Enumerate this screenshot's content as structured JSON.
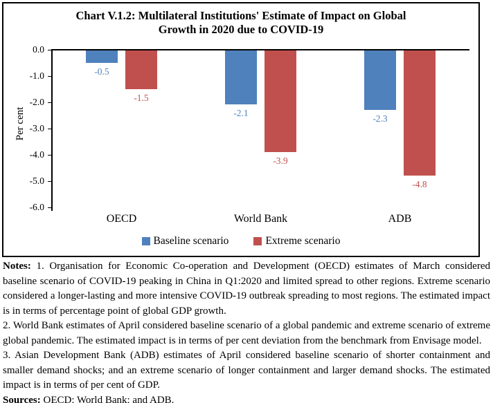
{
  "figure": {
    "title_line1": "Chart V.1.2: Multilateral Institutions' Estimate of Impact on Global",
    "title_line2": "Growth in 2020 due to COVID-19"
  },
  "chart_data": {
    "type": "bar",
    "title": "Chart V.1.2: Multilateral Institutions' Estimate of Impact on Global Growth in 2020 due to COVID-19",
    "categories": [
      "OECD",
      "World Bank",
      "ADB"
    ],
    "series": [
      {
        "name": "Baseline scenario",
        "color": "#4F81BD",
        "values": [
          -0.5,
          -2.1,
          -2.3
        ]
      },
      {
        "name": "Extreme scenario",
        "color": "#C0504D",
        "values": [
          -1.5,
          -3.9,
          -4.8
        ]
      }
    ],
    "data_labels": [
      [
        "-0.5",
        "-2.1",
        "-2.3"
      ],
      [
        "-1.5",
        "-3.9",
        "-4.8"
      ]
    ],
    "ylabel": "Per cent",
    "xlabel": "",
    "ylim": [
      -6.0,
      0.0
    ],
    "ytick_labels": [
      "0.0",
      "-1.0",
      "-2.0",
      "-3.0",
      "-4.0",
      "-5.0",
      "-6.0"
    ],
    "grid": false,
    "legend_position": "bottom"
  },
  "notes": {
    "label": "Notes:",
    "items": [
      " 1. Organisation for Economic Co-operation and Development (OECD) estimates of March considered baseline scenario of COVID-19 peaking in China in Q1:2020 and limited spread to other regions. Extreme scenario considered a longer-lasting and more intensive COVID-19 outbreak spreading to most regions. The estimated impact is in terms of percentage point of global GDP growth.",
      "2. World Bank estimates of April considered baseline scenario of a global pandemic and extreme scenario of extreme global pandemic. The estimated impact is in terms of per cent deviation from the benchmark from Envisage model.",
      "3. Asian Development Bank (ADB) estimates of April considered baseline scenario of shorter containment and smaller demand shocks; and an extreme scenario of longer containment and larger demand shocks. The estimated impact is in terms of per cent of GDP."
    ]
  },
  "sources": {
    "label": "Sources:",
    "text": " OECD; World Bank; and ADB."
  }
}
